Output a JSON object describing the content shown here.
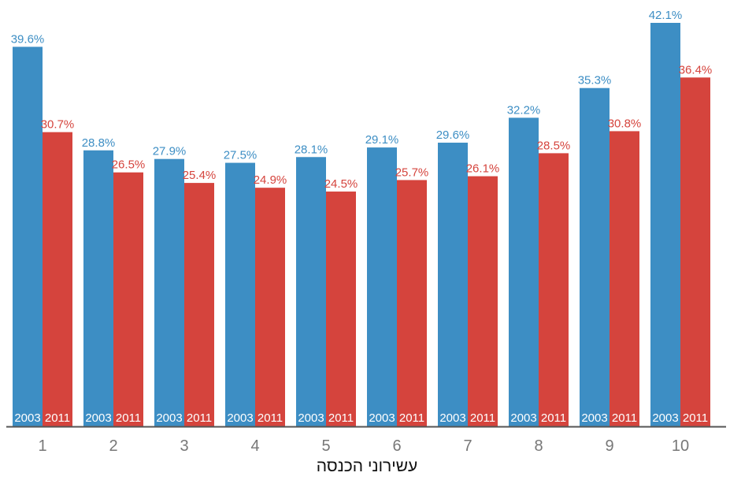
{
  "chart_data": {
    "type": "bar",
    "categories": [
      "1",
      "2",
      "3",
      "4",
      "5",
      "6",
      "7",
      "8",
      "9",
      "10"
    ],
    "series": [
      {
        "name": "2003",
        "color": "#3d8ec4",
        "values": [
          39.6,
          28.8,
          27.9,
          27.5,
          28.1,
          29.1,
          29.6,
          32.2,
          35.3,
          42.1
        ],
        "labels": [
          "39.6%",
          "28.8%",
          "27.9%",
          "27.5%",
          "28.1%",
          "29.1%",
          "29.6%",
          "32.2%",
          "35.3%",
          "42.1%"
        ]
      },
      {
        "name": "2011",
        "color": "#d5443d",
        "values": [
          30.7,
          26.5,
          25.4,
          24.9,
          24.5,
          25.7,
          26.1,
          28.5,
          30.8,
          36.4
        ],
        "labels": [
          "30.7%",
          "26.5%",
          "25.4%",
          "24.9%",
          "24.5%",
          "25.7%",
          "26.1%",
          "28.5%",
          "30.8%",
          "36.4%"
        ]
      }
    ],
    "title": "",
    "xlabel": "עשירוני הכנסה",
    "ylabel": "",
    "ylim": [
      0,
      42.1
    ],
    "grid": false,
    "legend": "none",
    "axis_color": "#555555",
    "tick_label_color": "#777777"
  }
}
